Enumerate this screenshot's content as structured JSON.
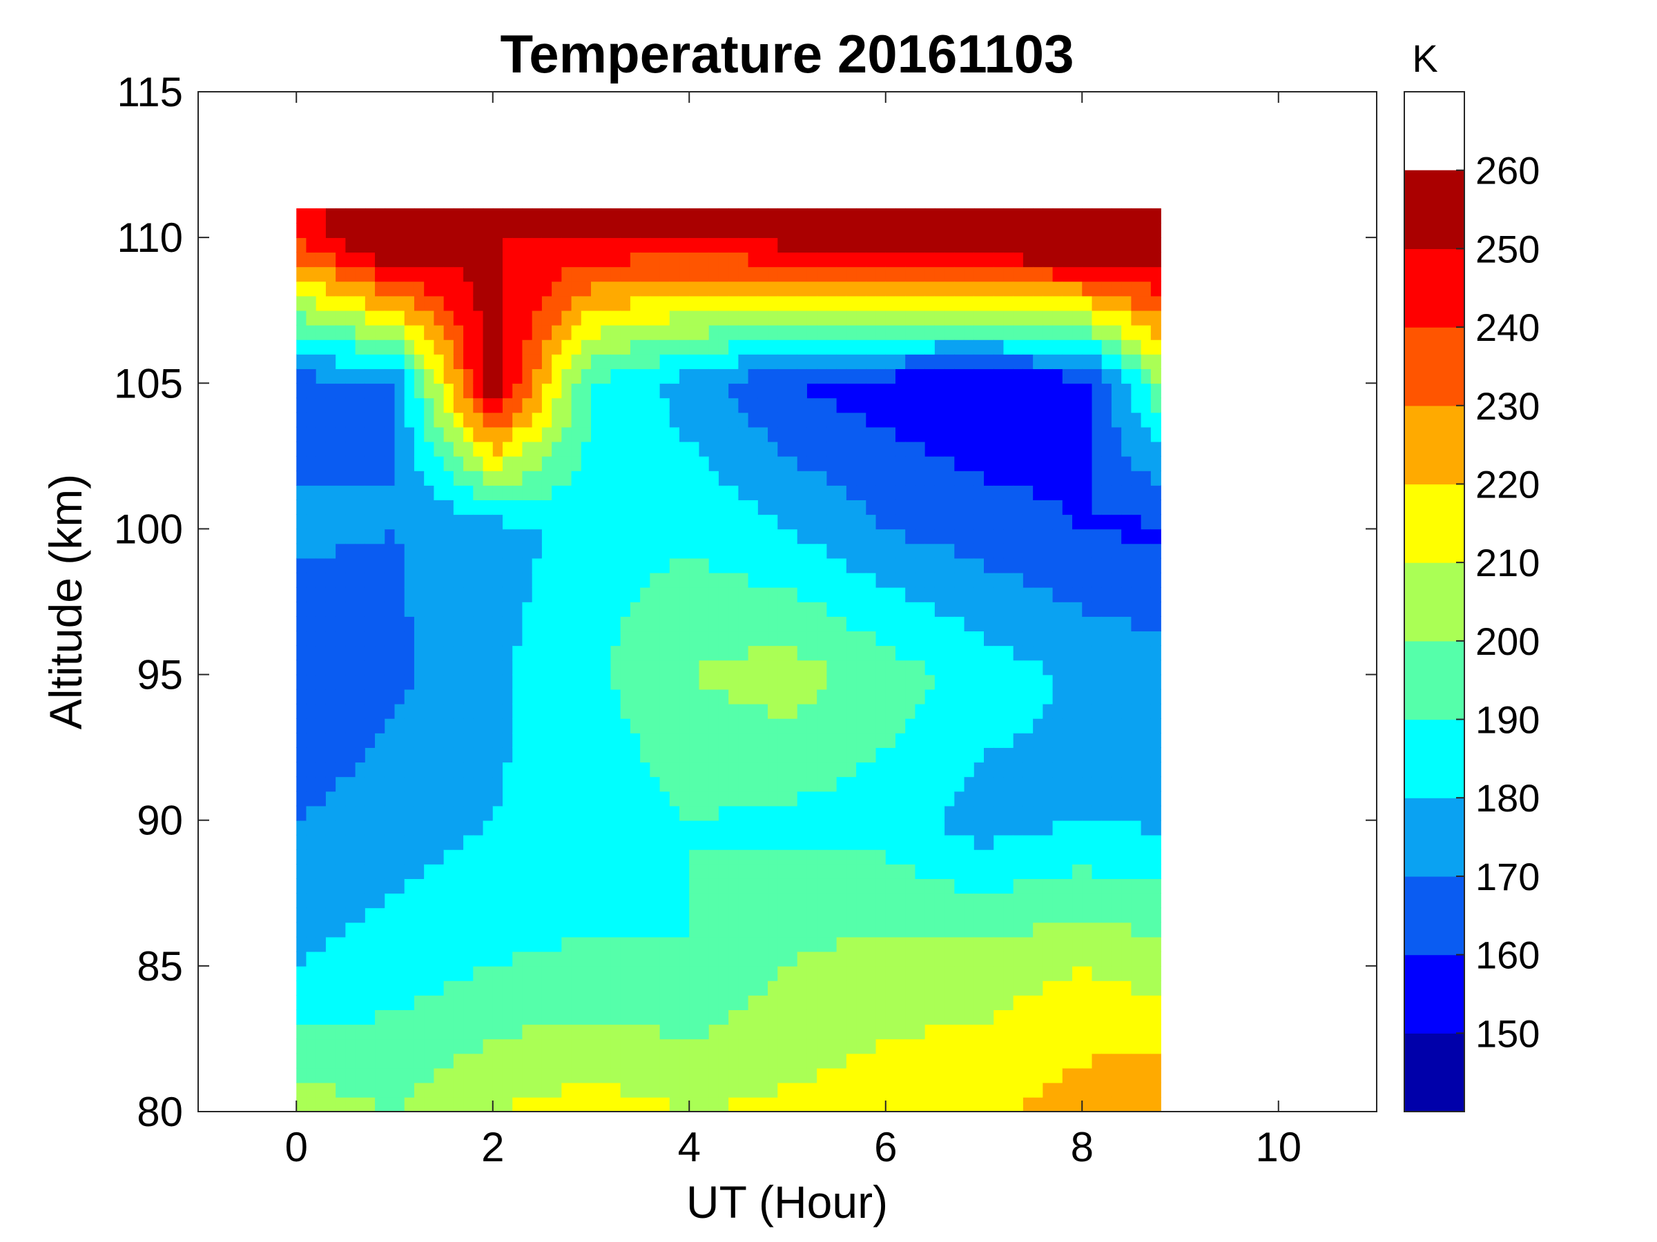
{
  "chart_data": {
    "type": "contour",
    "title": "Temperature 20161103",
    "xlabel": "UT (Hour)",
    "ylabel": "Altitude (km)",
    "xlim": [
      -1,
      11
    ],
    "ylim": [
      80,
      115
    ],
    "xticks": [
      0,
      2,
      4,
      6,
      8,
      10
    ],
    "yticks": [
      80,
      85,
      90,
      95,
      100,
      105,
      110,
      115
    ],
    "data_x_range": [
      0,
      8.8
    ],
    "data_y_range": [
      80,
      111
    ],
    "colorbar": {
      "unit": "K",
      "levels": [
        140,
        150,
        160,
        170,
        180,
        190,
        200,
        210,
        220,
        230,
        240,
        250,
        260,
        270
      ],
      "tick_labels": [
        "150",
        "160",
        "170",
        "180",
        "190",
        "200",
        "210",
        "220",
        "230",
        "240",
        "250",
        "260"
      ],
      "colors": [
        "#0000AA",
        "#0000FF",
        "#0A5CF2",
        "#0AA2F2",
        "#00FFFF",
        "#55FFAA",
        "#AAFF55",
        "#FFFF00",
        "#FFAA00",
        "#FF5500",
        "#FF0000",
        "#AA0000"
      ]
    },
    "temperature_k": {
      "times": [
        0,
        1,
        2,
        3,
        4,
        5,
        6,
        7,
        8,
        8.8
      ],
      "altitudes": [
        80,
        85,
        90,
        95,
        100,
        105,
        110
      ],
      "values": [
        [
          205,
          200,
          210,
          215,
          210,
          212,
          215,
          218,
          225,
          230
        ],
        [
          180,
          185,
          190,
          192,
          190,
          200,
          205,
          205,
          210,
          205
        ],
        [
          170,
          175,
          180,
          182,
          190,
          188,
          185,
          175,
          180,
          178
        ],
        [
          160,
          168,
          178,
          188,
          200,
          205,
          195,
          185,
          178,
          175
        ],
        [
          172,
          170,
          175,
          185,
          188,
          180,
          170,
          165,
          160,
          158
        ],
        [
          165,
          170,
          260,
          190,
          175,
          160,
          155,
          150,
          155,
          200
        ],
        [
          240,
          270,
          250,
          250,
          250,
          255,
          260,
          265,
          270,
          265
        ]
      ]
    }
  }
}
